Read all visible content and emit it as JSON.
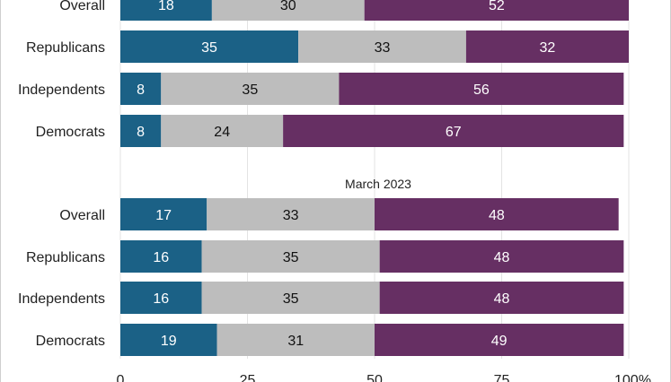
{
  "chart_data": {
    "type": "bar",
    "orientation": "horizontal",
    "stacked": true,
    "colors": [
      "#1b6186",
      "#bdbdbd",
      "#662f63"
    ],
    "label_colors": [
      "#ffffff",
      "#111111",
      "#ffffff"
    ],
    "xlim": [
      0,
      100
    ],
    "xticks": [
      "0",
      "25",
      "50",
      "75",
      "100%"
    ],
    "grid": true,
    "legend": "none",
    "groups": [
      {
        "title": "",
        "categories": [
          "Overall",
          "Republicans",
          "Independents",
          "Democrats"
        ],
        "series": [
          {
            "values": [
              18,
              35,
              8,
              8
            ]
          },
          {
            "values": [
              30,
              33,
              35,
              24
            ]
          },
          {
            "values": [
              52,
              32,
              56,
              67
            ]
          }
        ]
      },
      {
        "title": "March 2023",
        "categories": [
          "Overall",
          "Republicans",
          "Independents",
          "Democrats"
        ],
        "series": [
          {
            "values": [
              17,
              16,
              16,
              19
            ]
          },
          {
            "values": [
              33,
              35,
              35,
              31
            ]
          },
          {
            "values": [
              48,
              48,
              48,
              49
            ]
          }
        ]
      }
    ]
  }
}
